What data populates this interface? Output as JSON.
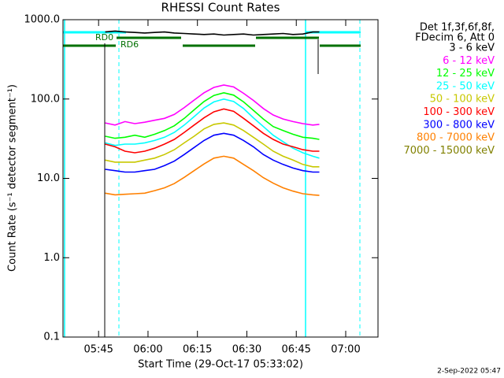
{
  "chart_data": {
    "type": "line",
    "title": "RHESSI Count Rates",
    "x_label": "Start Time (29-Oct-17 05:33:02)",
    "y_label": "Count Rate (s⁻¹ detector segment⁻¹)",
    "legend_header": [
      "Det 1f,3f,6f,8f,",
      "FDecim 6, Att 0"
    ],
    "annotations": [
      "RD0",
      "RD6"
    ],
    "footer": "2-Sep-2022 05:47",
    "log_y": true,
    "xlim": [
      34.2,
      129.8
    ],
    "xticks": [
      {
        "value": 45,
        "label": "05:45"
      },
      {
        "value": 60,
        "label": "06:00"
      },
      {
        "value": 75,
        "label": "06:15"
      },
      {
        "value": 90,
        "label": "06:30"
      },
      {
        "value": 105,
        "label": "06:45"
      },
      {
        "value": 120,
        "label": "07:00"
      }
    ],
    "ylim": [
      0.1,
      1000
    ],
    "yticks": [
      0.1,
      {
        "value": 1,
        "label": "1.0"
      },
      {
        "value": 10,
        "label": "10.0"
      },
      {
        "value": 100,
        "label": "100.0"
      },
      {
        "value": 1000,
        "label": "1000.0"
      }
    ],
    "x": [
      47,
      50,
      53,
      56,
      59,
      62,
      65,
      68,
      71,
      74,
      77,
      80,
      83,
      86,
      89,
      92,
      95,
      98,
      101,
      104,
      107,
      110,
      112
    ],
    "series": [
      {
        "name": "3 - 6 keV",
        "color": "#000000",
        "values": [
          700,
          720,
          700,
          690,
          680,
          690,
          700,
          680,
          670,
          660,
          650,
          660,
          640,
          650,
          660,
          640,
          650,
          660,
          670,
          650,
          660,
          700,
          700
        ]
      },
      {
        "name": "6 - 12 keV",
        "color": "#ff00ff",
        "values": [
          50,
          47,
          52,
          49,
          51,
          54,
          57,
          64,
          78,
          97,
          120,
          140,
          150,
          142,
          118,
          96,
          76,
          63,
          56,
          52,
          49,
          47,
          48
        ]
      },
      {
        "name": "12 - 25 keV",
        "color": "#00ff00",
        "values": [
          34,
          32,
          33,
          35,
          33,
          36,
          40,
          46,
          57,
          73,
          93,
          111,
          120,
          112,
          92,
          72,
          56,
          45,
          40,
          36,
          33,
          32,
          31
        ]
      },
      {
        "name": "25 - 50 keV",
        "color": "#00ffff",
        "values": [
          28,
          26,
          27,
          27,
          28,
          30,
          33,
          38,
          47,
          60,
          77,
          92,
          100,
          93,
          76,
          58,
          45,
          35,
          29,
          24,
          21,
          19,
          18
        ]
      },
      {
        "name": "50 - 100 keV",
        "color": "#c8c800",
        "values": [
          17,
          16,
          16,
          16,
          17,
          18,
          20,
          23,
          28,
          34,
          42,
          48,
          50,
          47,
          40,
          33,
          27,
          22,
          19,
          17,
          15,
          14,
          14
        ]
      },
      {
        "name": "100 - 300 keV",
        "color": "#ff0000",
        "values": [
          27,
          25,
          22,
          21,
          22,
          24,
          27,
          31,
          38,
          47,
          58,
          69,
          75,
          70,
          57,
          46,
          37,
          31,
          27,
          25,
          23,
          22,
          22
        ]
      },
      {
        "name": "300 - 800 keV",
        "color": "#0000ff",
        "values": [
          13,
          12.5,
          12,
          12,
          12.5,
          13,
          14.5,
          16.5,
          20,
          24.5,
          30,
          35,
          37,
          35,
          30,
          25,
          20,
          17,
          15,
          13.5,
          12.5,
          12,
          12
        ]
      },
      {
        "name": "800 - 7000 keV",
        "color": "#ff8000",
        "values": [
          6.5,
          6.2,
          6.3,
          6.4,
          6.5,
          7,
          7.6,
          8.6,
          10.3,
          12.5,
          15.2,
          18,
          19,
          18,
          15,
          12.5,
          10.2,
          8.7,
          7.6,
          6.9,
          6.4,
          6.2,
          6.1
        ]
      },
      {
        "name": "7000 - 15000 keV",
        "color": "#808000",
        "values": [
          null,
          null,
          null,
          null,
          null,
          null,
          null,
          null,
          null,
          null,
          null,
          null,
          null,
          null,
          null,
          null,
          null,
          null,
          null,
          null,
          null,
          null,
          null
        ]
      }
    ]
  }
}
